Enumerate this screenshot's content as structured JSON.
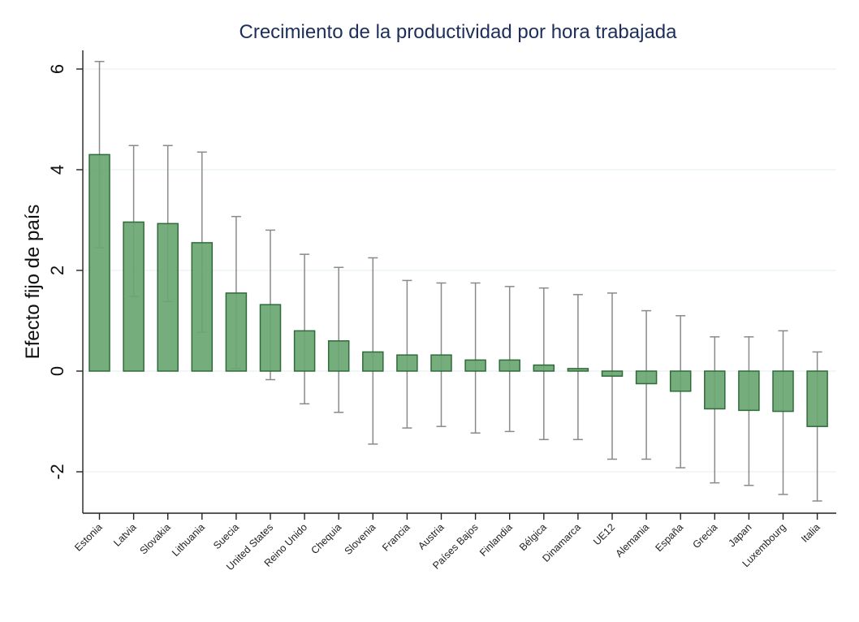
{
  "colors": {
    "bar_fill": "#6aa672",
    "bar_stroke": "#2f6b3a",
    "error_bar": "#8a8a8a",
    "title": "#1c2e5a",
    "grid": "#e3ecef"
  },
  "chart_data": {
    "type": "bar",
    "title": "Crecimiento de la productividad por hora trabajada",
    "xlabel": "",
    "ylabel": "Efecto fijo de país",
    "ylim": [
      -2.8,
      6.3
    ],
    "yticks": [
      -2,
      0,
      2,
      4,
      6
    ],
    "ytick_labels": [
      "-2",
      "0",
      "2",
      "4",
      "6"
    ],
    "grid": true,
    "categories": [
      "Estonia",
      "Latvia",
      "Slovakia",
      "Lithuania",
      "Suecia",
      "United States",
      "Reino Unido",
      "Chequia",
      "Slovenia",
      "Francia",
      "Austria",
      "Países Bajos",
      "Finlandia",
      "Bélgica",
      "Dinamarca",
      "UE12",
      "Alemania",
      "España",
      "Grecia",
      "Japan",
      "Luxembourg",
      "Italia"
    ],
    "values": [
      4.3,
      2.96,
      2.93,
      2.55,
      1.55,
      1.32,
      0.8,
      0.6,
      0.38,
      0.32,
      0.32,
      0.22,
      0.22,
      0.12,
      0.05,
      -0.1,
      -0.25,
      -0.4,
      -0.75,
      -0.78,
      -0.8,
      -1.1
    ],
    "error_low": [
      2.45,
      1.48,
      1.38,
      0.77,
      0.05,
      -0.17,
      -0.65,
      -0.82,
      -1.45,
      -1.13,
      -1.1,
      -1.23,
      -1.2,
      -1.36,
      -1.36,
      -1.75,
      -1.75,
      -1.92,
      -2.22,
      -2.27,
      -2.45,
      -2.58
    ],
    "error_high": [
      6.15,
      4.48,
      4.48,
      4.35,
      3.07,
      2.8,
      2.32,
      2.06,
      2.25,
      1.8,
      1.75,
      1.75,
      1.68,
      1.65,
      1.52,
      1.55,
      1.2,
      1.1,
      0.68,
      0.68,
      0.8,
      0.38
    ]
  }
}
